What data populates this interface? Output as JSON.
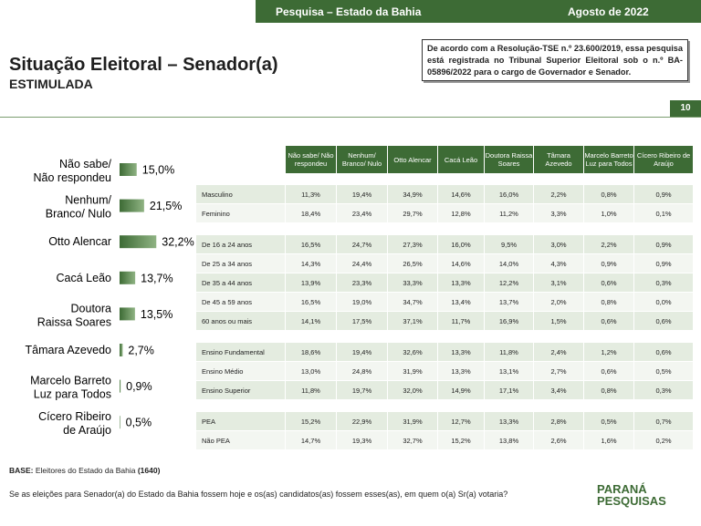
{
  "header": {
    "survey": "Pesquisa – Estado da Bahia",
    "date": "Agosto de 2022"
  },
  "title": "Situação Eleitoral – Senador(a)",
  "subtitle": "ESTIMULADA",
  "notice": "De acordo com a Resolução-TSE n.º 23.600/2019, essa pesquisa está registrada no Tribunal Superior Eleitoral sob o n.º BA-05896/2022 para o cargo de Governador e Senador.",
  "page_number": "10",
  "chart_data": {
    "type": "bar",
    "orientation": "horizontal",
    "color": "#3d6b35",
    "categories": [
      "Não sabe/ Não respondeu",
      "Nenhum/ Branco/ Nulo",
      "Otto Alencar",
      "Cacá Leão",
      "Doutora Raissa Soares",
      "Tâmara Azevedo",
      "Marcelo Barreto Luz para Todos",
      "Cícero Ribeiro de Araújo"
    ],
    "values": [
      15.0,
      21.5,
      32.2,
      13.7,
      13.5,
      2.7,
      0.9,
      0.5
    ],
    "value_labels": [
      "15,0%",
      "21,5%",
      "32,2%",
      "13,7%",
      "13,5%",
      "2,7%",
      "0,9%",
      "0,5%"
    ]
  },
  "table": {
    "columns": [
      "Não sabe/ Não respondeu",
      "Nenhum/ Branco/ Nulo",
      "Otto Alencar",
      "Cacá Leão",
      "Doutora Raissa Soares",
      "Tâmara Azevedo",
      "Marcelo Barreto Luz para Todos",
      "Cícero Ribeiro de Araújo"
    ],
    "groups": [
      [
        [
          "Masculino",
          "11,3%",
          "19,4%",
          "34,9%",
          "14,6%",
          "16,0%",
          "2,2%",
          "0,8%",
          "0,9%"
        ],
        [
          "Feminino",
          "18,4%",
          "23,4%",
          "29,7%",
          "12,8%",
          "11,2%",
          "3,3%",
          "1,0%",
          "0,1%"
        ]
      ],
      [
        [
          "De 16 a 24 anos",
          "16,5%",
          "24,7%",
          "27,3%",
          "16,0%",
          "9,5%",
          "3,0%",
          "2,2%",
          "0,9%"
        ],
        [
          "De 25 a 34 anos",
          "14,3%",
          "24,4%",
          "26,5%",
          "14,6%",
          "14,0%",
          "4,3%",
          "0,9%",
          "0,9%"
        ],
        [
          "De 35 a 44 anos",
          "13,9%",
          "23,3%",
          "33,3%",
          "13,3%",
          "12,2%",
          "3,1%",
          "0,6%",
          "0,3%"
        ],
        [
          "De 45 a 59 anos",
          "16,5%",
          "19,0%",
          "34,7%",
          "13,4%",
          "13,7%",
          "2,0%",
          "0,8%",
          "0,0%"
        ],
        [
          "60 anos ou mais",
          "14,1%",
          "17,5%",
          "37,1%",
          "11,7%",
          "16,9%",
          "1,5%",
          "0,6%",
          "0,6%"
        ]
      ],
      [
        [
          "Ensino Fundamental",
          "18,6%",
          "19,4%",
          "32,6%",
          "13,3%",
          "11,8%",
          "2,4%",
          "1,2%",
          "0,6%"
        ],
        [
          "Ensino Médio",
          "13,0%",
          "24,8%",
          "31,9%",
          "13,3%",
          "13,1%",
          "2,7%",
          "0,6%",
          "0,5%"
        ],
        [
          "Ensino Superior",
          "11,8%",
          "19,7%",
          "32,0%",
          "14,9%",
          "17,1%",
          "3,4%",
          "0,8%",
          "0,3%"
        ]
      ],
      [
        [
          "PEA",
          "15,2%",
          "22,9%",
          "31,9%",
          "12,7%",
          "13,3%",
          "2,8%",
          "0,5%",
          "0,7%"
        ],
        [
          "Não PEA",
          "14,7%",
          "19,3%",
          "32,7%",
          "15,2%",
          "13,8%",
          "2,6%",
          "1,6%",
          "0,2%"
        ]
      ]
    ]
  },
  "base": {
    "label": "BASE:",
    "text": "Eleitores do Estado da Bahia",
    "count": "(1640)"
  },
  "question": "Se as eleições para Senador(a) do Estado da Bahia fossem hoje e os(as) candidatos(as) fossem esses(as), em quem o(a) Sr(a) votaria?",
  "logo": {
    "line1": "PARANÁ",
    "line2": "PESQUISAS"
  }
}
